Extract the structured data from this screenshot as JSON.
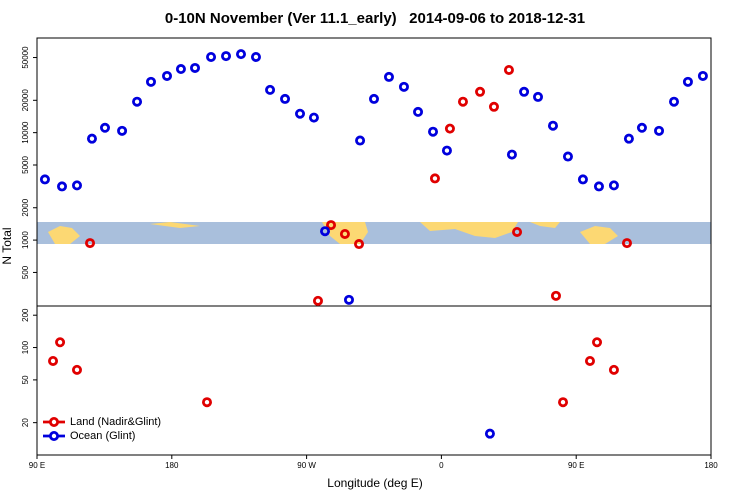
{
  "chart_data": {
    "type": "scatter",
    "title": "0-10N November (Ver 11.1_early)   2014-09-06 to 2018-12-31",
    "x_label": "Longitude (deg E)",
    "y_label": "N Total",
    "xlim": [
      90,
      540
    ],
    "xticks": [
      {
        "value": 90,
        "label": "90 E"
      },
      180,
      {
        "value": 270,
        "label": "90 W"
      },
      {
        "value": 360,
        "label": "0"
      },
      {
        "value": 450,
        "label": "90 E"
      },
      {
        "value": 540,
        "label": "180"
      }
    ],
    "ylim": [
      10,
      76000
    ],
    "y_log": true,
    "yticks": [
      20,
      50,
      100,
      200,
      500,
      1000,
      2000,
      5000,
      10000,
      20000,
      50000
    ],
    "legend": "lower left",
    "series": [
      {
        "name": "Land (Nadir&Glint)",
        "color": "#e00000",
        "x": [
          125.4,
          286.3,
          295.6,
          305.0,
          277.6,
          355.7,
          365.7,
          374.4,
          385.8,
          395.1,
          405.1,
          410.5,
          436.5,
          483.9,
          100.7,
          105.4,
          116.7,
          203.5,
          441.2,
          459.2,
          463.9,
          475.2
        ],
        "values": [
          938,
          1380,
          1140,
          919,
          272,
          3750,
          10900,
          19400,
          24000,
          17400,
          38300,
          1190,
          303,
          938,
          75,
          112,
          62,
          31,
          31,
          75,
          112,
          62
        ]
      },
      {
        "name": "Ocean (Glint)",
        "color": "#0000dd",
        "x": [
          95.3,
          106.7,
          116.7,
          126.7,
          135.4,
          146.8,
          156.8,
          166.1,
          176.8,
          186.1,
          195.5,
          206.2,
          216.2,
          226.2,
          236.2,
          245.6,
          255.6,
          265.6,
          274.9,
          282.3,
          298.3,
          305.7,
          315.0,
          325.0,
          335.0,
          344.4,
          354.4,
          363.7,
          407.1,
          415.2,
          424.5,
          434.5,
          444.5,
          454.5,
          465.2,
          475.2,
          485.2,
          493.9,
          505.3,
          515.3,
          524.6,
          534.6,
          392.4
        ],
        "values": [
          3670,
          3160,
          3230,
          8790,
          11100,
          10400,
          19400,
          29700,
          33700,
          39100,
          40000,
          50600,
          51600,
          53800,
          50600,
          25000,
          20600,
          15000,
          13800,
          1210,
          278,
          8440,
          20600,
          33000,
          26700,
          15600,
          10200,
          6810,
          6250,
          24000,
          21500,
          11600,
          5990,
          3670,
          3160,
          3230,
          8790,
          11100,
          10400,
          19400,
          29700,
          33700,
          15.8
        ]
      }
    ]
  }
}
